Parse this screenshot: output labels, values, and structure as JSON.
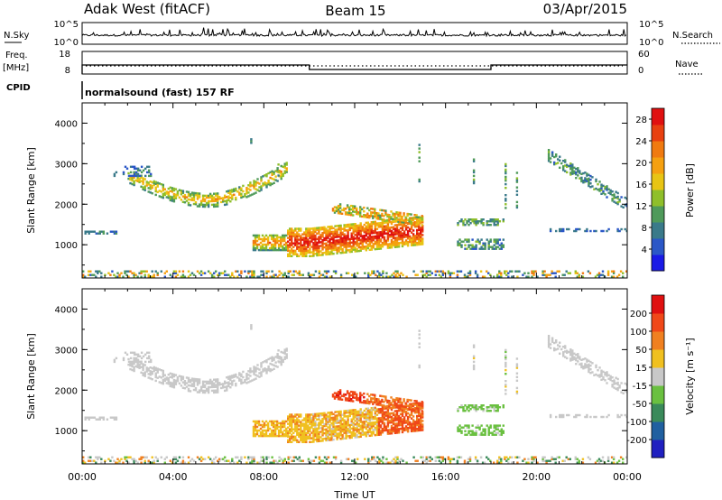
{
  "header": {
    "station": "Adak West (fitACF)",
    "beam": "Beam 15",
    "date": "03/Apr/2015"
  },
  "chart_data": [
    {
      "type": "line",
      "panel": "noise",
      "left_label": "N.Sky",
      "right_label": "N.Search",
      "left_ticks": [
        "10^5",
        "10^0"
      ],
      "right_ticks": [
        "10^5",
        "10^0"
      ]
    },
    {
      "type": "line",
      "panel": "frequency",
      "left_label_1": "Freq.",
      "left_label_2": "[MHz]",
      "right_label": "Nave",
      "left_ticks": [
        18,
        8
      ],
      "right_ticks": [
        60,
        0
      ],
      "freq_series": [
        {
          "start": 0,
          "end": 10,
          "value": 12
        },
        {
          "start": 10,
          "end": 18,
          "value": 10
        },
        {
          "start": 18,
          "end": 24,
          "value": 12
        }
      ]
    },
    {
      "type": "text",
      "panel": "cpid",
      "left_label": "CPID",
      "value": "normalsound (fast) 157 RF"
    },
    {
      "type": "heatmap",
      "panel": "power",
      "ylabel": "Slant Range [km]",
      "ylim": [
        180,
        4500
      ],
      "yticks": [
        1000,
        2000,
        3000,
        4000
      ],
      "colorbar_label": "Power [dB]",
      "colorbar_ticks": [
        4,
        8,
        12,
        16,
        20,
        24,
        28
      ],
      "colorbar_colors": [
        "#1a1ae6",
        "#2b57c7",
        "#3a7a8a",
        "#4f9a5a",
        "#8fbf2a",
        "#e8c414",
        "#f5a010",
        "#f07a10",
        "#e84010",
        "#e01010"
      ],
      "value_range": [
        0,
        30
      ]
    },
    {
      "type": "heatmap",
      "panel": "velocity",
      "ylabel": "Slant Range [km]",
      "xlabel": "Time UT",
      "ylim": [
        180,
        4500
      ],
      "yticks": [
        1000,
        2000,
        3000,
        4000
      ],
      "xticks": [
        "00:00",
        "04:00",
        "08:00",
        "12:00",
        "16:00",
        "20:00",
        "00:00"
      ],
      "xlim_hours": [
        0,
        24
      ],
      "colorbar_label": "Velocity [m s⁻¹]",
      "colorbar_ticks": [
        "200",
        "100",
        "50",
        "15",
        "-15",
        "-50",
        "-100",
        "-200"
      ],
      "colorbar_colors": [
        "#2020c0",
        "#2060a0",
        "#3a8a5a",
        "#6ac040",
        "#c8c8c8",
        "#f0c020",
        "#f08020",
        "#f04818",
        "#e01010"
      ],
      "value_range": [
        -250,
        250
      ]
    }
  ],
  "colors": {
    "axis": "#000000",
    "ground_scatter": "#c8c8c8"
  }
}
